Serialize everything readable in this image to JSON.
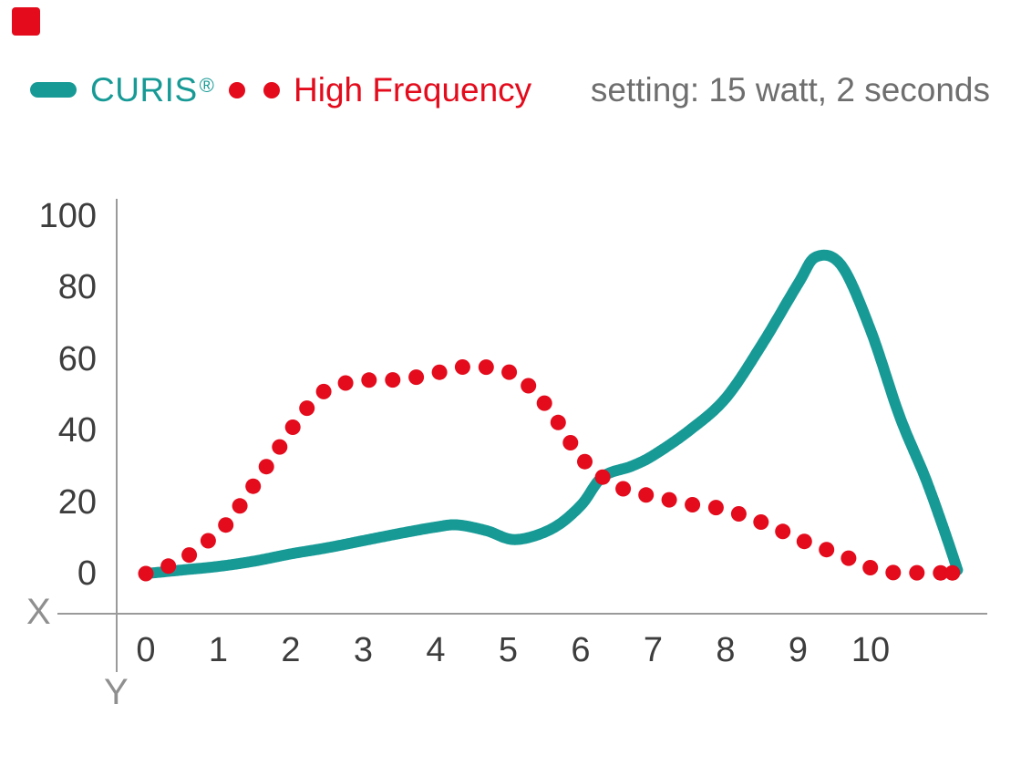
{
  "colors": {
    "curis": "#179a96",
    "high_frequency": "#e30b1c",
    "axis": "#9a9a9a",
    "axis_letter": "#8f8f8f",
    "setting_text": "#6e6e6e",
    "tick_text": "#3d3d3d"
  },
  "brand": {
    "mark": "red-square-logo",
    "color": "#e30b1c"
  },
  "legend": {
    "curis_label": "CURIS",
    "registered_mark": "®",
    "hf_label": "High Frequency",
    "setting_text": "setting: 15 watt, 2 seconds"
  },
  "chart_data": {
    "type": "line",
    "title": "",
    "grid": false,
    "legend_position": "top",
    "x_axis": {
      "label": "X",
      "ticks": [
        0,
        1,
        2,
        3,
        4,
        5,
        6,
        7,
        8,
        9,
        10
      ],
      "lim": [
        0,
        11.3
      ]
    },
    "y_axis": {
      "label": "Y",
      "ticks": [
        0,
        20,
        40,
        60,
        80,
        100
      ],
      "lim": [
        0,
        100
      ]
    },
    "series": [
      {
        "name": "CURIS",
        "style": "solid-line",
        "color": "#179a96",
        "points": [
          [
            0,
            0
          ],
          [
            0.5,
            1
          ],
          [
            1,
            2
          ],
          [
            1.5,
            3.5
          ],
          [
            2,
            5.5
          ],
          [
            2.5,
            7.2
          ],
          [
            3,
            9.2
          ],
          [
            3.5,
            11.2
          ],
          [
            4,
            13
          ],
          [
            4.3,
            13.6
          ],
          [
            4.7,
            12
          ],
          [
            5.1,
            9.5
          ],
          [
            5.6,
            12.5
          ],
          [
            6,
            19
          ],
          [
            6.3,
            27
          ],
          [
            6.7,
            30
          ],
          [
            7,
            33
          ],
          [
            7.5,
            40
          ],
          [
            8,
            49
          ],
          [
            8.5,
            64
          ],
          [
            9,
            81
          ],
          [
            9.25,
            88.5
          ],
          [
            9.6,
            86
          ],
          [
            10,
            68
          ],
          [
            10.4,
            44
          ],
          [
            10.75,
            27
          ],
          [
            11,
            13
          ],
          [
            11.2,
            1
          ]
        ]
      },
      {
        "name": "High Frequency",
        "style": "dotted",
        "color": "#e30b1c",
        "points": [
          [
            0,
            0
          ],
          [
            0.3,
            2
          ],
          [
            0.6,
            5.2
          ],
          [
            0.85,
            9
          ],
          [
            1.1,
            13.5
          ],
          [
            1.3,
            19
          ],
          [
            1.5,
            25
          ],
          [
            1.7,
            31
          ],
          [
            1.9,
            37
          ],
          [
            2.1,
            43
          ],
          [
            2.3,
            48
          ],
          [
            2.5,
            51.5
          ],
          [
            2.7,
            53
          ],
          [
            3,
            54
          ],
          [
            3.3,
            54
          ],
          [
            3.6,
            54.5
          ],
          [
            3.9,
            55.5
          ],
          [
            4.2,
            57
          ],
          [
            4.5,
            58
          ],
          [
            4.8,
            57.3
          ],
          [
            5.1,
            55.5
          ],
          [
            5.35,
            51
          ],
          [
            5.6,
            45
          ],
          [
            5.8,
            38.5
          ],
          [
            6,
            32.5
          ],
          [
            6.3,
            27
          ],
          [
            6.55,
            24
          ],
          [
            6.8,
            22.5
          ],
          [
            7,
            21.5
          ],
          [
            7.3,
            20.3
          ],
          [
            7.55,
            19.2
          ],
          [
            7.85,
            18.5
          ],
          [
            8.1,
            17.2
          ],
          [
            8.4,
            15.1
          ],
          [
            8.7,
            12.6
          ],
          [
            9,
            9.7
          ],
          [
            9.3,
            7.4
          ],
          [
            9.6,
            5.1
          ],
          [
            9.9,
            2.6
          ],
          [
            10.15,
            0.5
          ],
          [
            10.5,
            0.3
          ],
          [
            10.8,
            0.2
          ],
          [
            11.13,
            0.2
          ]
        ]
      }
    ]
  }
}
